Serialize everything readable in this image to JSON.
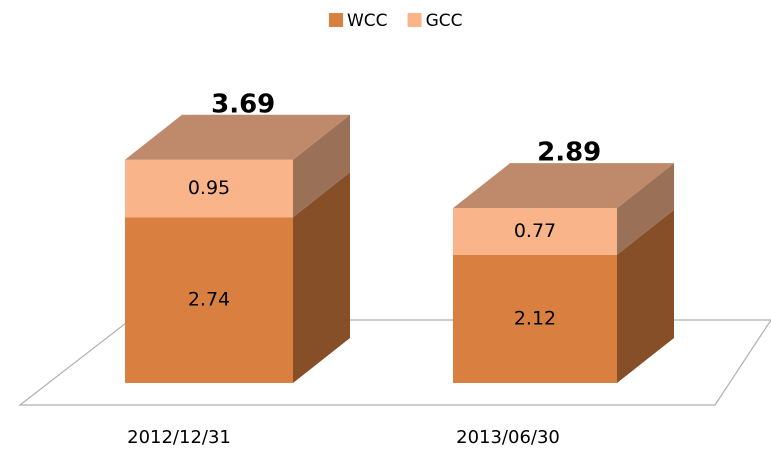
{
  "chart_data": {
    "type": "bar3d_stacked",
    "categories": [
      "2012/12/31",
      "2013/06/30"
    ],
    "series": [
      {
        "name": "WCC",
        "color": "#d98040",
        "values": [
          2.74,
          2.12
        ]
      },
      {
        "name": "GCC",
        "color": "#f9b48a",
        "values": [
          0.95,
          0.77
        ]
      }
    ],
    "totals": [
      3.69,
      2.89
    ]
  }
}
